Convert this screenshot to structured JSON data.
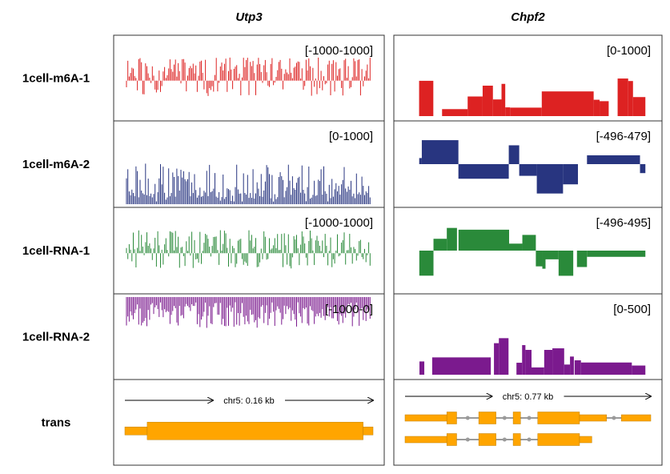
{
  "chart_data": {
    "type": "genome-browser-tracks",
    "columns": [
      {
        "gene": "Utp3",
        "scale_label": "chr5: 0.16 kb",
        "tracks": [
          {
            "name": "1cell-m6A-1",
            "range": "[-1000-1000]",
            "color": "#dd2222",
            "signal": "dense-bipolar",
            "seed": 11
          },
          {
            "name": "1cell-m6A-2",
            "range": "[0-1000]",
            "color": "#283580",
            "signal": "dense-positive",
            "seed": 23
          },
          {
            "name": "1cell-RNA-1",
            "range": "[-1000-1000]",
            "color": "#2a8a3a",
            "signal": "dense-bipolar",
            "seed": 37
          },
          {
            "name": "1cell-RNA-2",
            "range": "[-1000-0]",
            "color": "#7b1a8e",
            "signal": "dense-negative",
            "seed": 51
          }
        ],
        "transcripts": [
          [
            {
              "start": 0.0,
              "end": 0.09,
              "kind": "utr"
            },
            {
              "start": 0.09,
              "end": 0.96,
              "kind": "cds"
            },
            {
              "start": 0.96,
              "end": 1.0,
              "kind": "utr"
            }
          ]
        ]
      },
      {
        "gene": "Chpf2",
        "scale_label": "chr5: 0.77 kb",
        "tracks": [
          {
            "name": "1cell-m6A-1",
            "range": "[0-1000]",
            "color": "#dd2222",
            "signal": "blocky-positive",
            "seed": 7
          },
          {
            "name": "1cell-m6A-2",
            "range": "[-496-479]",
            "color": "#283580",
            "signal": "blocky-bipolar",
            "seed": 19
          },
          {
            "name": "1cell-RNA-1",
            "range": "[-496-495]",
            "color": "#2a8a3a",
            "signal": "blocky-bipolar",
            "seed": 29
          },
          {
            "name": "1cell-RNA-2",
            "range": "[0-500]",
            "color": "#7b1a8e",
            "signal": "blocky-positive",
            "seed": 43
          }
        ],
        "transcripts": [
          [
            {
              "start": 0.0,
              "end": 0.17,
              "kind": "utr"
            },
            {
              "start": 0.17,
              "end": 0.21,
              "kind": "cds"
            },
            {
              "start": 0.3,
              "end": 0.37,
              "kind": "cds"
            },
            {
              "start": 0.44,
              "end": 0.47,
              "kind": "cds"
            },
            {
              "start": 0.54,
              "end": 0.71,
              "kind": "cds"
            },
            {
              "start": 0.71,
              "end": 0.82,
              "kind": "utr"
            },
            {
              "start": 0.88,
              "end": 1.0,
              "kind": "utr"
            }
          ],
          [
            {
              "start": 0.0,
              "end": 0.17,
              "kind": "utr"
            },
            {
              "start": 0.17,
              "end": 0.21,
              "kind": "cds"
            },
            {
              "start": 0.3,
              "end": 0.37,
              "kind": "cds"
            },
            {
              "start": 0.44,
              "end": 0.47,
              "kind": "cds"
            },
            {
              "start": 0.54,
              "end": 0.71,
              "kind": "cds"
            },
            {
              "start": 0.71,
              "end": 0.76,
              "kind": "utr"
            }
          ]
        ]
      }
    ],
    "annotation_row_label": "trans",
    "gene_color": "#ffa500",
    "intron_color": "#9a9a9a"
  }
}
